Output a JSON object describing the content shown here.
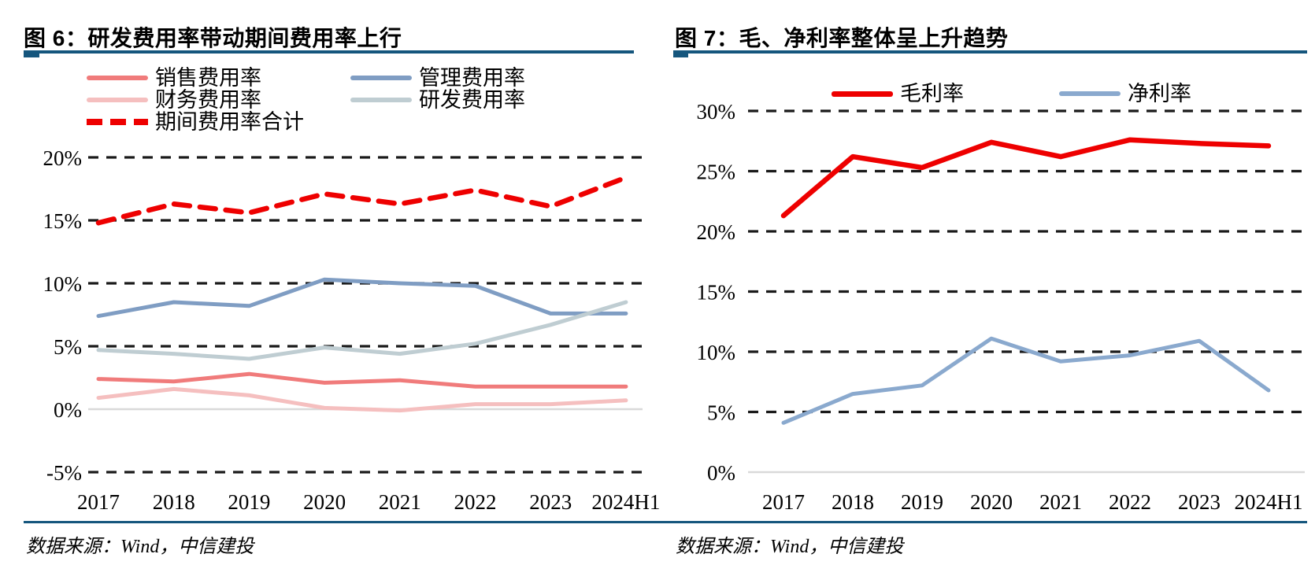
{
  "page": {
    "background": "#FFFFFF",
    "rule_color": "#15567D",
    "grid_color": "#1A1A1A",
    "zero_line_color": "#D9D9D9",
    "accent_red": "#EE0000"
  },
  "figures": [
    {
      "title": "图 6：研发费用率带动期间费用率上行",
      "source": "数据来源：Wind，中信建投",
      "chart_data": {
        "type": "line",
        "categories": [
          "2017",
          "2018",
          "2019",
          "2020",
          "2021",
          "2022",
          "2023",
          "2024H1"
        ],
        "series": [
          {
            "key": "sales-expense-ratio",
            "name": "销售费用率",
            "color": "#F07B7B",
            "dash": "solid",
            "values": [
              2.4,
              2.2,
              2.8,
              2.1,
              2.3,
              1.8,
              1.8,
              1.8
            ]
          },
          {
            "key": "management-expense-ratio",
            "name": "管理费用率",
            "color": "#7F9DC3",
            "dash": "solid",
            "values": [
              7.4,
              8.5,
              8.2,
              10.3,
              10.0,
              9.8,
              7.6,
              7.6
            ]
          },
          {
            "key": "finance-expense-ratio",
            "name": "财务费用率",
            "color": "#F5BFBF",
            "dash": "solid",
            "values": [
              0.9,
              1.6,
              1.1,
              0.1,
              -0.1,
              0.4,
              0.4,
              0.7
            ]
          },
          {
            "key": "rnd-expense-ratio",
            "name": "研发费用率",
            "color": "#BFCDD2",
            "dash": "solid",
            "values": [
              4.7,
              4.4,
              4.0,
              4.9,
              4.4,
              5.2,
              6.7,
              8.5
            ]
          },
          {
            "key": "total-period-expense-ratio",
            "name": "期间费用率合计",
            "color": "#EE0000",
            "dash": "dashed",
            "values": [
              14.8,
              16.3,
              15.6,
              17.1,
              16.3,
              17.4,
              16.1,
              18.4
            ]
          }
        ],
        "ylim": [
          -5,
          20
        ],
        "yticks": [
          20,
          15,
          10,
          5,
          0,
          -5
        ],
        "ytick_labels": [
          "20%",
          "15%",
          "10%",
          "5%",
          "0%",
          "-5%"
        ],
        "grid": "horizontal dashed, solid gray line at 0%",
        "legend_position": "top"
      }
    },
    {
      "title": "图 7：毛、净利率整体呈上升趋势",
      "source": "数据来源：Wind，中信建投",
      "chart_data": {
        "type": "line",
        "categories": [
          "2017",
          "2018",
          "2019",
          "2020",
          "2021",
          "2022",
          "2023",
          "2024H1"
        ],
        "series": [
          {
            "key": "gross-margin",
            "name": "毛利率",
            "color": "#EE0000",
            "dash": "solid",
            "values": [
              21.3,
              26.2,
              25.3,
              27.4,
              26.2,
              27.6,
              27.3,
              27.1
            ]
          },
          {
            "key": "net-margin",
            "name": "净利率",
            "color": "#8AA9CE",
            "dash": "solid",
            "values": [
              4.1,
              6.5,
              7.2,
              11.1,
              9.2,
              9.7,
              10.9,
              6.8
            ]
          }
        ],
        "ylim": [
          0,
          30
        ],
        "yticks": [
          30,
          25,
          20,
          15,
          10,
          5,
          0
        ],
        "ytick_labels": [
          "30%",
          "25%",
          "20%",
          "15%",
          "10%",
          "5%",
          "0%"
        ],
        "grid": "horizontal dashed, solid gray line at 0%",
        "legend_position": "top"
      }
    }
  ]
}
